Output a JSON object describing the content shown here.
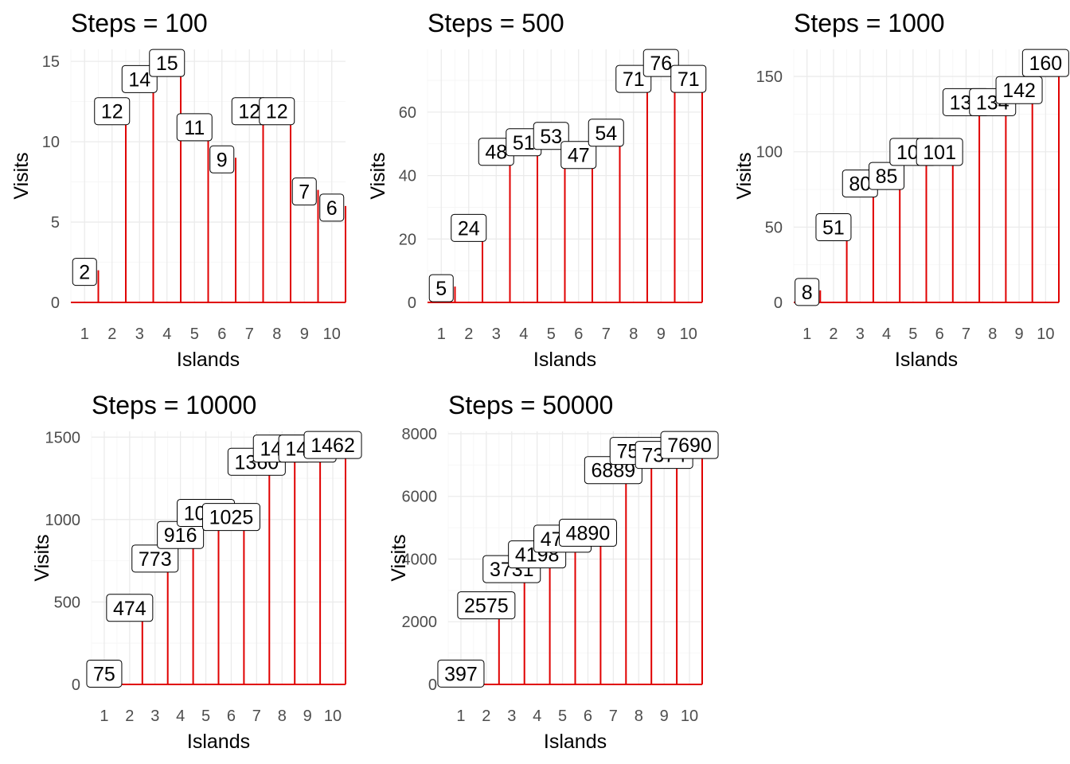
{
  "style": {
    "line_color": "#e00000"
  },
  "chart_data": [
    {
      "type": "line",
      "title": "Steps = 100",
      "xlabel": "Islands",
      "ylabel": "Visits",
      "x": [
        1,
        2,
        3,
        4,
        5,
        6,
        7,
        8,
        9,
        10
      ],
      "xlim": [
        0.5,
        10.5
      ],
      "values": [
        2,
        12,
        14,
        15,
        11,
        9,
        12,
        12,
        7,
        6
      ],
      "ylim": [
        0,
        15.75
      ],
      "yticks": [
        0,
        5,
        10,
        15
      ],
      "grid": true,
      "legend": "none"
    },
    {
      "type": "line",
      "title": "Steps = 500",
      "xlabel": "Islands",
      "ylabel": "Visits",
      "x": [
        1,
        2,
        3,
        4,
        5,
        6,
        7,
        8,
        9,
        10
      ],
      "xlim": [
        0.5,
        10.5
      ],
      "values": [
        5,
        24,
        48,
        51,
        53,
        47,
        54,
        71,
        76,
        71
      ],
      "ylim": [
        0,
        79.8
      ],
      "yticks": [
        0,
        20,
        40,
        60
      ],
      "grid": true,
      "legend": "none"
    },
    {
      "type": "line",
      "title": "Steps = 1000",
      "xlabel": "Islands",
      "ylabel": "Visits",
      "x": [
        1,
        2,
        3,
        4,
        5,
        6,
        7,
        8,
        9,
        10
      ],
      "xlim": [
        0.5,
        10.5
      ],
      "values": [
        8,
        51,
        80,
        85,
        101,
        101,
        134,
        134,
        142,
        160
      ],
      "ylim": [
        0,
        168
      ],
      "yticks": [
        0,
        50,
        100,
        150
      ],
      "grid": true,
      "legend": "none"
    },
    {
      "type": "line",
      "title": "Steps = 10000",
      "xlabel": "Islands",
      "ylabel": "Visits",
      "x": [
        1,
        2,
        3,
        4,
        5,
        6,
        7,
        8,
        9,
        10
      ],
      "xlim": [
        0.5,
        10.5
      ],
      "values": [
        75,
        474,
        773,
        916,
        1050,
        1025,
        1360,
        1440,
        1440,
        1462
      ],
      "ylim": [
        0,
        1535
      ],
      "yticks": [
        0,
        500,
        1000,
        1500
      ],
      "grid": true,
      "legend": "none"
    },
    {
      "type": "line",
      "title": "Steps = 50000",
      "xlabel": "Islands",
      "ylabel": "Visits",
      "x": [
        1,
        2,
        3,
        4,
        5,
        6,
        7,
        8,
        9,
        10
      ],
      "xlim": [
        0.5,
        10.5
      ],
      "values": [
        397,
        2575,
        3731,
        4198,
        4700,
        4890,
        6889,
        7500,
        7374,
        7690
      ],
      "ylim": [
        0,
        8075
      ],
      "yticks": [
        0,
        2000,
        4000,
        6000,
        8000
      ],
      "grid": true,
      "legend": "none"
    }
  ]
}
